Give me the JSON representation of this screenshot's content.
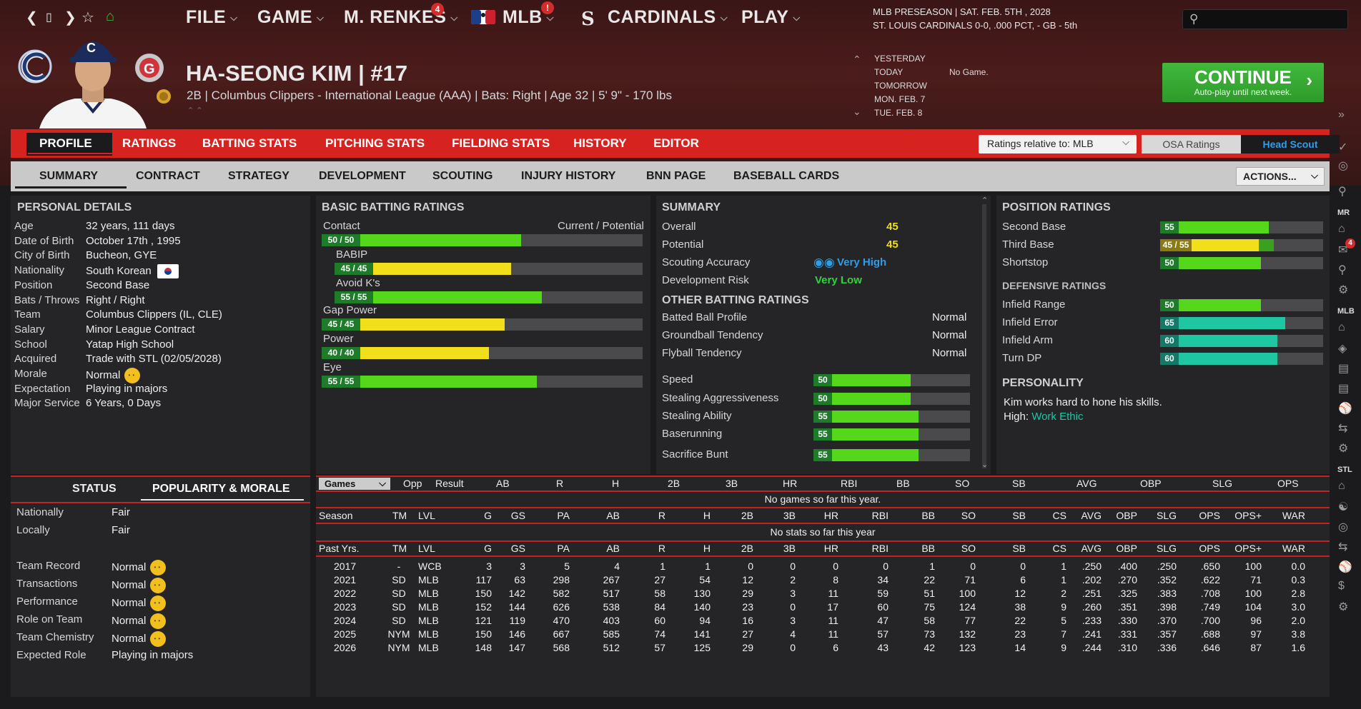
{
  "nav": {
    "file": "FILE",
    "game": "GAME",
    "manager": "M. RENKES",
    "manager_badge": "4",
    "mlb": "MLB",
    "mlb_badge": "!",
    "team": "CARDINALS",
    "play": "PLAY"
  },
  "league": {
    "line1": "MLB PRESEASON  |  SAT. FEB. 5TH , 2028",
    "line2": "ST. LOUIS CARDINALS  0-0, .000 PCT, - GB - 5th"
  },
  "search": {
    "placeholder": ""
  },
  "player": {
    "name": "HA-SEONG KIM  |  #17",
    "subtitle": "2B | Columbus Clippers - International League (AAA)  |  Bats: Right  |  Age 32  |  5' 9\"  - 170 lbs"
  },
  "dates": {
    "d1": "YESTERDAY",
    "d2": "TODAY",
    "d3": "TOMORROW",
    "d4": "MON. FEB. 7",
    "d5": "TUE. FEB. 8",
    "note": "No Game."
  },
  "continue": {
    "title": "CONTINUE",
    "sub": "Auto-play until next week."
  },
  "tabs1": [
    "PROFILE",
    "RATINGS",
    "BATTING STATS",
    "PITCHING STATS",
    "FIELDING STATS",
    "HISTORY",
    "EDITOR"
  ],
  "ratings_rel": "Ratings relative to: MLB",
  "osa": "OSA Ratings",
  "head_scout": "Head Scout",
  "tabs2": [
    "SUMMARY",
    "CONTRACT",
    "STRATEGY",
    "DEVELOPMENT",
    "SCOUTING",
    "INJURY HISTORY",
    "BNN PAGE",
    "BASEBALL CARDS"
  ],
  "actions": "ACTIONS...",
  "personal": {
    "title": "PERSONAL DETAILS",
    "rows": [
      [
        "Age",
        "32 years, 111 days"
      ],
      [
        "Date of Birth",
        "October 17th , 1995"
      ],
      [
        "City of Birth",
        "Bucheon, GYE"
      ],
      [
        "Nationality",
        "South Korean"
      ],
      [
        "Position",
        "Second Base"
      ],
      [
        "Bats / Throws",
        "Right / Right"
      ],
      [
        "Team",
        "Columbus Clippers (IL, CLE)"
      ],
      [
        "Salary",
        "Minor League Contract"
      ],
      [
        "School",
        "Yatap High School"
      ],
      [
        "Acquired",
        "Trade with STL (02/05/2028)"
      ],
      [
        "Morale",
        "Normal"
      ],
      [
        "Expectation",
        "Playing in majors"
      ],
      [
        "Major Service",
        "6 Years, 0 Days"
      ]
    ]
  },
  "batting": {
    "title": "BASIC BATTING RATINGS",
    "header": "Current / Potential",
    "rows": [
      {
        "label": "Contact",
        "text": "50 / 50",
        "val": 50,
        "color": "#55d81c"
      },
      {
        "label": "BABIP",
        "text": "45 / 45",
        "val": 45,
        "color": "#f0df1a"
      },
      {
        "label": "Avoid K's",
        "text": "55 / 55",
        "val": 55,
        "color": "#55d81c"
      },
      {
        "label": "Gap Power",
        "text": "45 / 45",
        "val": 45,
        "color": "#f0df1a"
      },
      {
        "label": "Power",
        "text": "40 / 40",
        "val": 40,
        "color": "#f0df1a"
      },
      {
        "label": "Eye",
        "text": "55 / 55",
        "val": 55,
        "color": "#55d81c"
      }
    ]
  },
  "summary": {
    "title": "SUMMARY",
    "overall_lbl": "Overall",
    "overall": "45",
    "potential_lbl": "Potential",
    "potential": "45",
    "scout_lbl": "Scouting Accuracy",
    "scout": "Very High",
    "risk_lbl": "Development Risk",
    "risk": "Very Low",
    "other_title": "OTHER BATTING RATINGS",
    "other": [
      [
        "Batted Ball Profile",
        "Normal"
      ],
      [
        "Groundball Tendency",
        "Normal"
      ],
      [
        "Flyball Tendency",
        "Normal"
      ]
    ],
    "bars": [
      {
        "label": "Speed",
        "text": "50",
        "val": 50
      },
      {
        "label": "Stealing Aggressiveness",
        "text": "50",
        "val": 50
      },
      {
        "label": "Stealing Ability",
        "text": "55",
        "val": 55
      },
      {
        "label": "Baserunning",
        "text": "55",
        "val": 55
      },
      {
        "label": "Sacrifice Bunt",
        "text": "55",
        "val": 55
      }
    ]
  },
  "position": {
    "title": "POSITION RATINGS",
    "rows": [
      {
        "label": "Second Base",
        "text": "55",
        "val": 55,
        "color": "#55d81c"
      },
      {
        "label": "Third Base",
        "text": "45 / 55",
        "val": 45,
        "pot": 55,
        "color": "#f0df1a"
      },
      {
        "label": "Shortstop",
        "text": "50",
        "val": 50,
        "color": "#55d81c"
      }
    ],
    "def_title": "DEFENSIVE RATINGS",
    "def": [
      {
        "label": "Infield Range",
        "text": "50",
        "val": 50,
        "color": "#55d81c"
      },
      {
        "label": "Infield Error",
        "text": "65",
        "val": 65,
        "color": "#1fc6a2"
      },
      {
        "label": "Infield Arm",
        "text": "60",
        "val": 60,
        "color": "#1fc6a2"
      },
      {
        "label": "Turn DP",
        "text": "60",
        "val": 60,
        "color": "#1fc6a2"
      }
    ],
    "pers_title": "PERSONALITY",
    "pers_text": "Kim works hard to hone his skills.",
    "pers_high_lbl": "High:",
    "pers_high": "Work Ethic"
  },
  "status": {
    "tab1": "STATUS",
    "tab2": "POPULARITY & MORALE",
    "rows1": [
      [
        "Nationally",
        "Fair"
      ],
      [
        "Locally",
        "Fair"
      ]
    ],
    "rows2": [
      [
        "Team Record",
        "Normal"
      ],
      [
        "Transactions",
        "Normal"
      ],
      [
        "Performance",
        "Normal"
      ],
      [
        "Role on Team",
        "Normal"
      ],
      [
        "Team Chemistry",
        "Normal"
      ]
    ],
    "exp_lbl": "Expected Role",
    "exp": "Playing in majors"
  },
  "games": {
    "select": "Games",
    "cols": [
      "Opp",
      "Result",
      "AB",
      "R",
      "H",
      "2B",
      "3B",
      "HR",
      "RBI",
      "BB",
      "SO",
      "SB",
      "AVG",
      "OBP",
      "SLG",
      "OPS"
    ],
    "empty": "No games so far this year."
  },
  "season": {
    "cols": [
      "Season",
      "TM",
      "LVL",
      "G",
      "GS",
      "PA",
      "AB",
      "R",
      "H",
      "2B",
      "3B",
      "HR",
      "RBI",
      "BB",
      "SO",
      "SB",
      "CS",
      "AVG",
      "OBP",
      "SLG",
      "OPS",
      "OPS+",
      "WAR"
    ],
    "empty": "No stats so far this year"
  },
  "past": {
    "cols": [
      "Past Yrs.",
      "TM",
      "LVL",
      "G",
      "GS",
      "PA",
      "AB",
      "R",
      "H",
      "2B",
      "3B",
      "HR",
      "RBI",
      "BB",
      "SO",
      "SB",
      "CS",
      "AVG",
      "OBP",
      "SLG",
      "OPS",
      "OPS+",
      "WAR"
    ],
    "rows": [
      [
        "2017",
        "-",
        "WCB",
        "3",
        "3",
        "5",
        "4",
        "1",
        "1",
        "0",
        "0",
        "0",
        "0",
        "1",
        "0",
        "0",
        "1",
        ".250",
        ".400",
        ".250",
        ".650",
        "100",
        "0.0"
      ],
      [
        "2021",
        "SD",
        "MLB",
        "117",
        "63",
        "298",
        "267",
        "27",
        "54",
        "12",
        "2",
        "8",
        "34",
        "22",
        "71",
        "6",
        "1",
        ".202",
        ".270",
        ".352",
        ".622",
        "71",
        "0.3"
      ],
      [
        "2022",
        "SD",
        "MLB",
        "150",
        "142",
        "582",
        "517",
        "58",
        "130",
        "29",
        "3",
        "11",
        "59",
        "51",
        "100",
        "12",
        "2",
        ".251",
        ".325",
        ".383",
        ".708",
        "100",
        "2.8"
      ],
      [
        "2023",
        "SD",
        "MLB",
        "152",
        "144",
        "626",
        "538",
        "84",
        "140",
        "23",
        "0",
        "17",
        "60",
        "75",
        "124",
        "38",
        "9",
        ".260",
        ".351",
        ".398",
        ".749",
        "104",
        "3.0"
      ],
      [
        "2024",
        "SD",
        "MLB",
        "121",
        "119",
        "470",
        "403",
        "60",
        "94",
        "16",
        "3",
        "11",
        "47",
        "58",
        "77",
        "22",
        "5",
        ".233",
        ".330",
        ".370",
        ".700",
        "96",
        "2.0"
      ],
      [
        "2025",
        "NYM",
        "MLB",
        "150",
        "146",
        "667",
        "585",
        "74",
        "141",
        "27",
        "4",
        "11",
        "57",
        "73",
        "132",
        "23",
        "7",
        ".241",
        ".331",
        ".357",
        ".688",
        "97",
        "3.8"
      ],
      [
        "2026",
        "NYM",
        "MLB",
        "148",
        "147",
        "568",
        "512",
        "57",
        "125",
        "29",
        "0",
        "6",
        "43",
        "42",
        "123",
        "14",
        "9",
        ".244",
        ".310",
        ".336",
        ".646",
        "87",
        "1.6"
      ]
    ]
  },
  "sidebar": {
    "mr": "MR",
    "mlb": "MLB",
    "stl": "STL",
    "badge": "4"
  }
}
